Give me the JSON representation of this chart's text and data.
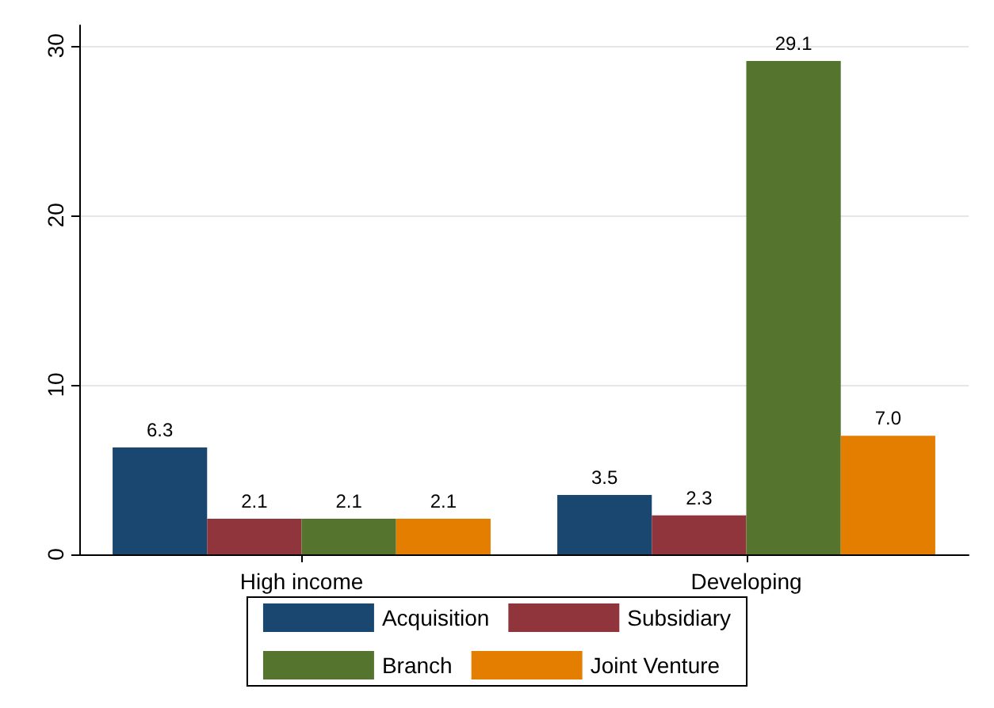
{
  "chart_data": {
    "type": "bar",
    "categories": [
      "High income",
      "Developing"
    ],
    "series": [
      {
        "name": "Acquisition",
        "color": "#1a476f",
        "values": [
          6.3,
          3.5
        ],
        "value_labels": [
          "6.3",
          "3.5"
        ]
      },
      {
        "name": "Subsidiary",
        "color": "#90353b",
        "values": [
          2.1,
          2.3
        ],
        "value_labels": [
          "2.1",
          "2.3"
        ]
      },
      {
        "name": "Branch",
        "color": "#55752f",
        "values": [
          2.1,
          29.1
        ],
        "value_labels": [
          "2.1",
          "29.1"
        ]
      },
      {
        "name": "Joint Venture",
        "color": "#e37e00",
        "values": [
          2.1,
          7.0
        ],
        "value_labels": [
          "2.1",
          "7.0"
        ]
      }
    ],
    "ylim": [
      0,
      31.2
    ],
    "yticks": [
      0,
      10,
      20,
      30
    ],
    "grid": "y",
    "legend": "bottom"
  }
}
